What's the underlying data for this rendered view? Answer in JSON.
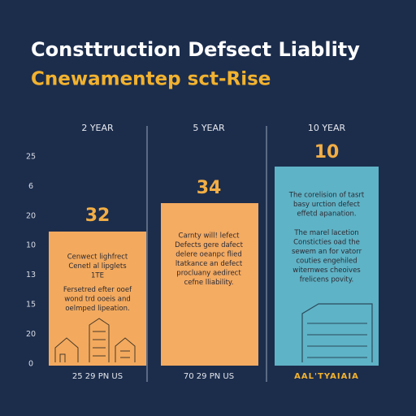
{
  "title": "Consttruction Defsect Liablity",
  "subtitle": "Cnewamentep sct-Rise",
  "axis_labels": [
    "25",
    "6",
    "20",
    "10",
    "13",
    "15",
    "20",
    "0"
  ],
  "panels": [
    {
      "header": "2 YEAR",
      "value": "32",
      "lines": [
        "Cenwect lighfrect",
        "Cenetl al lipglets",
        "1TE",
        "Fersetred efter ooef",
        "wond trd ooeis and",
        "oelmped lipeation."
      ],
      "footer": "25 29 PN US"
    },
    {
      "header": "5 YEAR",
      "value": "34",
      "lines": [
        "Carnty will! lefect",
        "Defects gere dafect",
        "delere oeanpc flied",
        "ltatkance an defect",
        "procluany aedirect",
        "cefne lliability."
      ],
      "footer": "70 29 PN US"
    },
    {
      "header": "10 YEAR",
      "value": "10",
      "lines": [
        "The corelision of tasrt",
        "basy urction defect",
        "effetd apanation.",
        "The marel lacetion",
        "Consticties oad the",
        "sewem an for vatorr",
        "couties engehiled",
        "witernwes cheoives",
        "frelicens povity."
      ],
      "footer": "AAL'TYAIAIA"
    }
  ]
}
